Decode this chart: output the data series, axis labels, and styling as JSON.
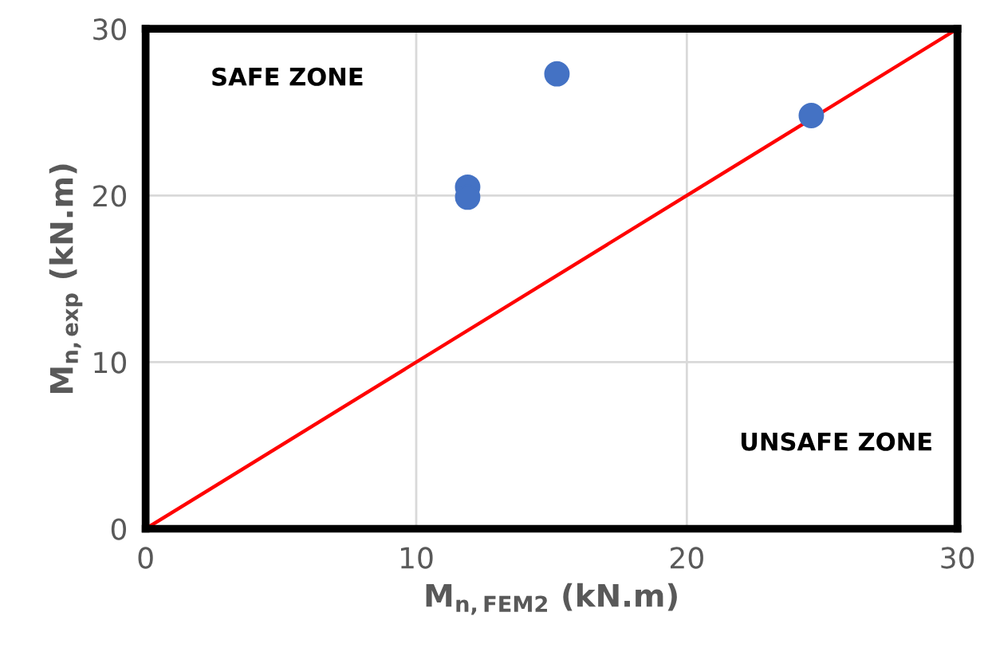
{
  "chart_data": {
    "type": "scatter",
    "xlabel": "M$_{n,FEM2}$ (kN.m)",
    "ylabel": "M$_{n,exp}$ (kN.m)",
    "xlim": [
      0,
      30
    ],
    "ylim": [
      0,
      30
    ],
    "xticks": [
      0,
      10,
      20,
      30
    ],
    "yticks": [
      0,
      10,
      20,
      30
    ],
    "grid": true,
    "series": [
      {
        "color": "#4472c4",
        "marker": "circle",
        "x": [
          11.9,
          11.9,
          15.2,
          24.6
        ],
        "values": [
          20.5,
          19.9,
          27.3,
          24.8
        ]
      },
      {
        "type": "line",
        "color": "#ff0000",
        "marker": "none",
        "x": [
          0,
          30
        ],
        "values": [
          0,
          30
        ]
      }
    ],
    "annotations": [
      "SAFE ZONE",
      "UNSAFE ZONE"
    ]
  }
}
